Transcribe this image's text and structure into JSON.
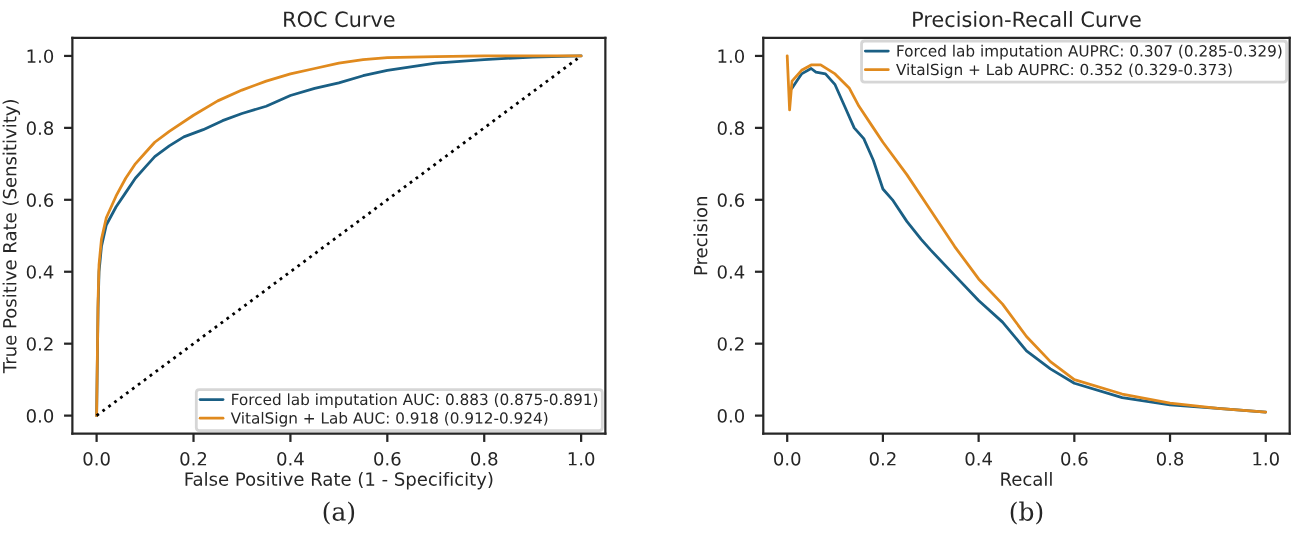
{
  "chart_data": [
    {
      "type": "line",
      "title": "ROC Curve",
      "xlabel": "False Positive Rate (1 - Specificity)",
      "ylabel": "True Positive Rate (Sensitivity)",
      "xlim": [
        -0.05,
        1.05
      ],
      "ylim": [
        -0.05,
        1.05
      ],
      "xticks": [
        {
          "value": 0,
          "label": "0.0"
        },
        {
          "value": 0.2,
          "label": "0.2"
        },
        {
          "value": 0.4,
          "label": "0.4"
        },
        {
          "value": 0.6,
          "label": "0.6"
        },
        {
          "value": 0.8,
          "label": "0.8"
        },
        {
          "value": 1,
          "label": "1.0"
        }
      ],
      "yticks": [
        {
          "value": 0,
          "label": "0.0"
        },
        {
          "value": 0.2,
          "label": "0.2"
        },
        {
          "value": 0.4,
          "label": "0.4"
        },
        {
          "value": 0.6,
          "label": "0.6"
        },
        {
          "value": 0.8,
          "label": "0.8"
        },
        {
          "value": 1,
          "label": "1.0"
        }
      ],
      "grid": false,
      "legend": "bottom right",
      "annotations": [
        "(a)"
      ],
      "series": [
        {
          "name": "Forced lab imputation AUC: 0.883 (0.875-0.891)",
          "color": "#1a5f84",
          "x": [
            0,
            0.003,
            0.005,
            0.01,
            0.02,
            0.04,
            0.06,
            0.08,
            0.1,
            0.12,
            0.15,
            0.18,
            0.22,
            0.26,
            0.3,
            0.35,
            0.4,
            0.45,
            0.5,
            0.55,
            0.6,
            0.7,
            0.8,
            0.9,
            1
          ],
          "values": [
            0,
            0.3,
            0.4,
            0.47,
            0.53,
            0.58,
            0.62,
            0.66,
            0.69,
            0.72,
            0.75,
            0.775,
            0.795,
            0.82,
            0.84,
            0.86,
            0.89,
            0.91,
            0.925,
            0.945,
            0.96,
            0.98,
            0.99,
            0.997,
            1
          ]
        },
        {
          "name": "VitalSign + Lab AUC: 0.918 (0.912-0.924)",
          "color": "#e08a1e",
          "x": [
            0,
            0.003,
            0.005,
            0.01,
            0.02,
            0.04,
            0.06,
            0.08,
            0.1,
            0.12,
            0.15,
            0.2,
            0.25,
            0.3,
            0.35,
            0.4,
            0.45,
            0.5,
            0.55,
            0.6,
            0.7,
            0.8,
            1
          ],
          "values": [
            0,
            0.32,
            0.42,
            0.49,
            0.55,
            0.61,
            0.66,
            0.7,
            0.73,
            0.76,
            0.79,
            0.835,
            0.875,
            0.905,
            0.93,
            0.95,
            0.965,
            0.98,
            0.99,
            0.995,
            0.998,
            1,
            1
          ]
        },
        {
          "color": "#000000",
          "line_style": "dotted",
          "x": [
            0,
            1
          ],
          "values": [
            0,
            1
          ]
        }
      ]
    },
    {
      "type": "line",
      "title": "Precision-Recall Curve",
      "xlabel": "Recall",
      "ylabel": "Precision",
      "xlim": [
        -0.05,
        1.05
      ],
      "ylim": [
        -0.05,
        1.05
      ],
      "xticks": [
        {
          "value": 0,
          "label": "0.0"
        },
        {
          "value": 0.2,
          "label": "0.2"
        },
        {
          "value": 0.4,
          "label": "0.4"
        },
        {
          "value": 0.6,
          "label": "0.6"
        },
        {
          "value": 0.8,
          "label": "0.8"
        },
        {
          "value": 1,
          "label": "1.0"
        }
      ],
      "yticks": [
        {
          "value": 0,
          "label": "0.0"
        },
        {
          "value": 0.2,
          "label": "0.2"
        },
        {
          "value": 0.4,
          "label": "0.4"
        },
        {
          "value": 0.6,
          "label": "0.6"
        },
        {
          "value": 0.8,
          "label": "0.8"
        },
        {
          "value": 1,
          "label": "1.0"
        }
      ],
      "grid": false,
      "legend": "top right",
      "annotations": [
        "(b)"
      ],
      "series": [
        {
          "name": "Forced lab imputation AUPRC: 0.307 (0.285-0.329)",
          "color": "#1a5f84",
          "x": [
            0.01,
            0.02,
            0.03,
            0.05,
            0.06,
            0.08,
            0.1,
            0.12,
            0.14,
            0.16,
            0.18,
            0.2,
            0.22,
            0.25,
            0.28,
            0.3,
            0.35,
            0.4,
            0.45,
            0.5,
            0.55,
            0.6,
            0.7,
            0.8,
            0.9,
            1.0
          ],
          "values": [
            0.91,
            0.93,
            0.95,
            0.965,
            0.955,
            0.95,
            0.92,
            0.86,
            0.8,
            0.77,
            0.71,
            0.63,
            0.6,
            0.54,
            0.49,
            0.46,
            0.39,
            0.32,
            0.26,
            0.18,
            0.13,
            0.09,
            0.05,
            0.03,
            0.02,
            0.01
          ]
        },
        {
          "name": "VitalSign + Lab AUPRC: 0.352 (0.329-0.373)",
          "color": "#e08a1e",
          "x": [
            0.0,
            0.005,
            0.01,
            0.03,
            0.05,
            0.07,
            0.1,
            0.13,
            0.15,
            0.18,
            0.2,
            0.25,
            0.3,
            0.35,
            0.4,
            0.45,
            0.5,
            0.55,
            0.6,
            0.7,
            0.8,
            0.9,
            1.0
          ],
          "values": [
            1.0,
            0.85,
            0.93,
            0.96,
            0.975,
            0.975,
            0.95,
            0.91,
            0.86,
            0.8,
            0.76,
            0.67,
            0.57,
            0.47,
            0.38,
            0.31,
            0.22,
            0.15,
            0.1,
            0.06,
            0.035,
            0.02,
            0.01
          ]
        }
      ]
    }
  ]
}
